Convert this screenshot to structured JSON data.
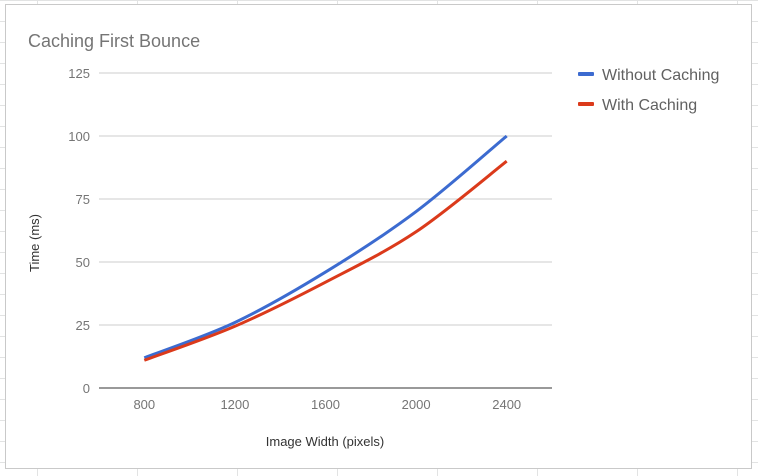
{
  "chart_data": {
    "type": "line",
    "title": "Caching First Bounce",
    "xlabel": "Image Width (pixels)",
    "ylabel": "Time (ms)",
    "x": [
      800,
      1200,
      1600,
      2000,
      2400
    ],
    "xlim": [
      600,
      2600
    ],
    "ylim": [
      0,
      125
    ],
    "x_ticks": [
      "800",
      "1200",
      "1600",
      "2000",
      "2400"
    ],
    "y_ticks": [
      "0",
      "25",
      "50",
      "75",
      "100",
      "125"
    ],
    "grid": true,
    "legend_position": "right",
    "series": [
      {
        "name": "Without Caching",
        "color": "#3c6bd0",
        "values": [
          12,
          26,
          46,
          70,
          100
        ]
      },
      {
        "name": "With Caching",
        "color": "#db3a1b",
        "values": [
          11,
          24.5,
          42,
          62,
          90
        ]
      }
    ]
  }
}
